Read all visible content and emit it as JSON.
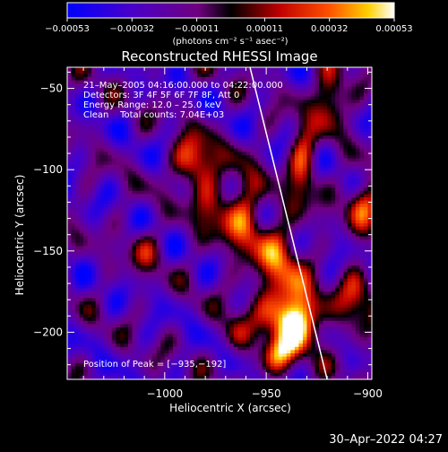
{
  "chart_data": {
    "type": "heatmap",
    "title": "Reconstructed RHESSI Image",
    "xlabel": "Heliocentric X (arcsec)",
    "ylabel": "Heliocentric Y (arcsec)",
    "xlim": [
      -1048,
      -898
    ],
    "ylim": [
      -229,
      -37
    ],
    "xticks": [
      -1000,
      -950,
      -900
    ],
    "xtick_labels": [
      "−1000",
      "−950",
      "−900"
    ],
    "yticks": [
      -50,
      -100,
      -150,
      -200
    ],
    "ytick_labels": [
      "−50",
      "−100",
      "−150",
      "−200"
    ],
    "colorbar": {
      "label": "(photons cm⁻² s⁻¹ asec⁻²)",
      "range": [
        -0.00053,
        0.00053
      ],
      "ticks": [
        -0.00053,
        -0.00032,
        -0.00011,
        0.00011,
        0.00032,
        0.00053
      ],
      "tick_labels": [
        "−0.00053",
        "−0.00032",
        "−0.00011",
        "0.00011",
        "0.00032",
        "0.00053"
      ]
    },
    "annotations": [
      "21–May–2005 04:16:00.000 to 04:22:00.000",
      "Detectors: 3F 4F 5F 6F 7F 8F, Att 0",
      "Energy Range: 12.0 – 25.0 keV",
      "Clean    Total counts: 7.04E+03"
    ],
    "peak_label": "Position of Peak = [−935,−192]",
    "peak": [
      -935,
      -192
    ],
    "limb_line": [
      [
        -958,
        -37
      ],
      [
        -920,
        -229
      ]
    ],
    "sources": [
      {
        "x": -935,
        "y": -192,
        "amp": 1.0,
        "sx": 9,
        "sy": 13
      },
      {
        "x": -944,
        "y": -160,
        "amp": 0.55,
        "sx": 8,
        "sy": 22
      },
      {
        "x": -960,
        "y": -130,
        "amp": 0.45,
        "sx": 6,
        "sy": 22
      },
      {
        "x": -985,
        "y": -95,
        "amp": 0.7,
        "sx": 7,
        "sy": 11
      },
      {
        "x": -975,
        "y": -125,
        "amp": 0.4,
        "sx": 8,
        "sy": 14
      },
      {
        "x": -918,
        "y": -55,
        "amp": 0.6,
        "sx": 6,
        "sy": 12
      },
      {
        "x": -932,
        "y": -95,
        "amp": 0.55,
        "sx": 5,
        "sy": 18
      },
      {
        "x": -905,
        "y": -180,
        "amp": 0.45,
        "sx": 6,
        "sy": 16
      },
      {
        "x": -902,
        "y": -120,
        "amp": 0.6,
        "sx": 6,
        "sy": 10
      },
      {
        "x": -945,
        "y": -215,
        "amp": 0.6,
        "sx": 6,
        "sy": 8
      },
      {
        "x": -1010,
        "y": -150,
        "amp": 0.3,
        "sx": 6,
        "sy": 10
      },
      {
        "x": -965,
        "y": -200,
        "amp": 0.35,
        "sx": 5,
        "sy": 10
      }
    ],
    "timestamp": "30–Apr–2022 04:27"
  }
}
